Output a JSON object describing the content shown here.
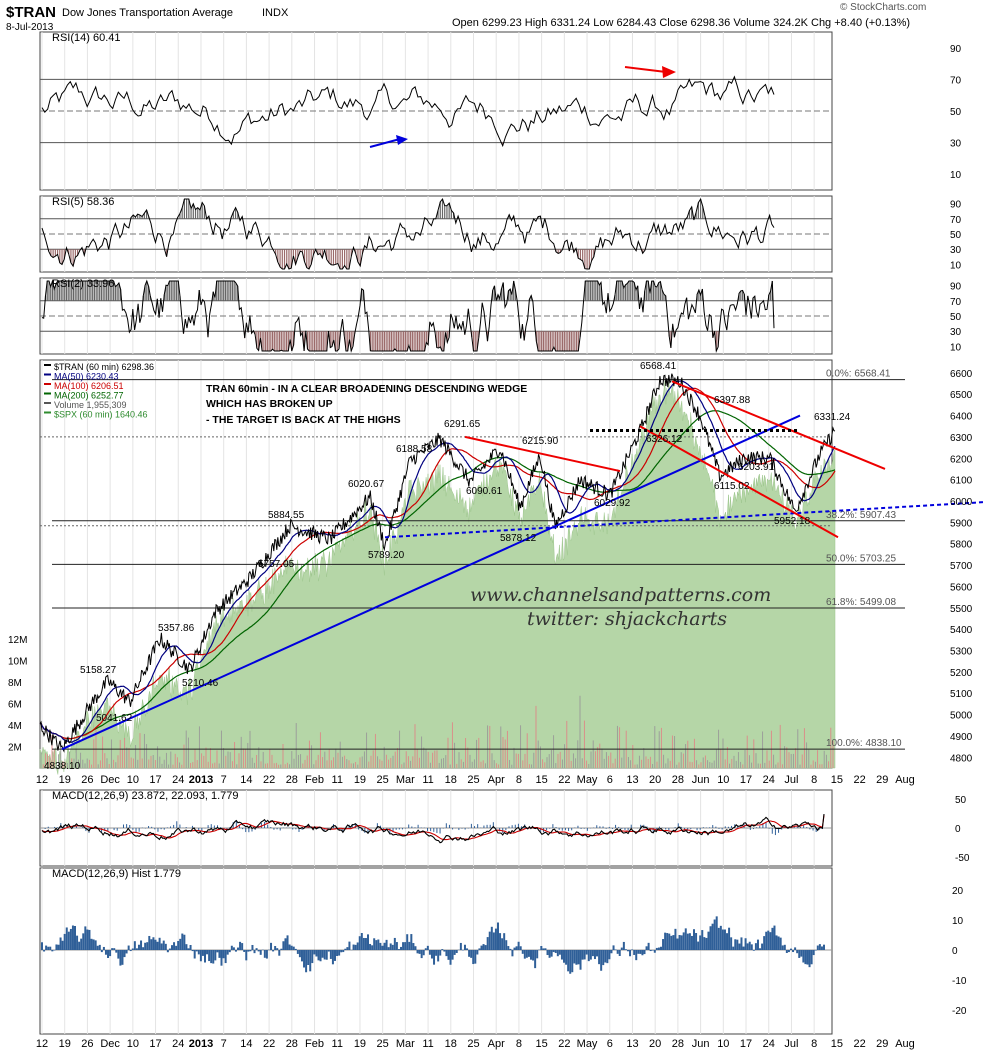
{
  "header": {
    "symbol": "$TRAN",
    "name": "Dow Jones Transportation Average",
    "exchange": "INDX",
    "date": "8-Jul-2013",
    "ohlc": "Open 6299.23  High 6331.24  Low 6284.43  Close 6298.36  Volume 324.2K  Chg +8.40 (+0.13%)",
    "change_arrow": "▲",
    "copyright": "© StockCharts.com"
  },
  "panels": {
    "rsi14_label": "RSI(14) 60.41",
    "rsi5_label": "RSI(5) 58.36",
    "rsi2_label": "RSI(2) 33.96",
    "macd_label": "MACD(12,26,9) 23.872, 22.093, 1.779",
    "macd_hist_label": "MACD(12,26,9) Hist 1.779"
  },
  "legend": [
    {
      "text": "$TRAN (60 min) 6298.36",
      "color": "#000000"
    },
    {
      "text": "MA(50) 6230.43",
      "color": "#000080"
    },
    {
      "text": "MA(100) 6206.51",
      "color": "#cc0000"
    },
    {
      "text": "MA(200) 6252.77",
      "color": "#006400"
    },
    {
      "text": "Volume 1,955,309",
      "color": "#555555"
    },
    {
      "text": "$SPX (60 min) 1640.46",
      "color": "#2e8b2e"
    }
  ],
  "annotation": {
    "line1": "TRAN 60min - IN A CLEAR BROADENING DESCENDING WEDGE",
    "line2": "WHICH HAS BROKEN UP",
    "line3": "- THE TARGET IS BACK AT THE HIGHS"
  },
  "watermark": {
    "line1": "www.channelsandpatterns.com",
    "line2": "twitter: shjackcharts"
  },
  "colors": {
    "price": "#000000",
    "ma50": "#000080",
    "ma100": "#cc0000",
    "ma200": "#006400",
    "spx_fill": "#b5d6a7",
    "trend_blue": "#0000dd",
    "trend_red": "#ee0000",
    "hist": "#2f5f98"
  },
  "chart_data": [
    {
      "type": "line",
      "title": "$TRAN Dow Jones Transportation Average INDX (60 min)",
      "x_ticks": [
        "12",
        "19",
        "26",
        "Dec",
        "10",
        "17",
        "24",
        "2013",
        "7",
        "14",
        "22",
        "28",
        "Feb",
        "11",
        "19",
        "25",
        "Mar",
        "11",
        "18",
        "25",
        "Apr",
        "8",
        "15",
        "22",
        "May",
        "6",
        "13",
        "20",
        "28",
        "Jun",
        "10",
        "17",
        "24",
        "Jul",
        "8",
        "15",
        "22",
        "29",
        "Aug"
      ],
      "y_ticks": [
        4800,
        4900,
        5000,
        5100,
        5200,
        5300,
        5400,
        5500,
        5600,
        5700,
        5800,
        5900,
        6000,
        6100,
        6200,
        6300,
        6400,
        6500,
        6600
      ],
      "ylim": [
        4750,
        6660
      ],
      "volume_ticks": [
        "2M",
        "4M",
        "6M",
        "8M",
        "10M",
        "12M"
      ],
      "price_points": [
        {
          "label": "4838.10",
          "value": 4838.1
        },
        {
          "label": "5041.62",
          "value": 5041.62
        },
        {
          "label": "5158.27",
          "value": 5158.27
        },
        {
          "label": "5210.46",
          "value": 5210.46
        },
        {
          "label": "5357.86",
          "value": 5357.86
        },
        {
          "label": "5757.05",
          "value": 5757.05
        },
        {
          "label": "5884.55",
          "value": 5884.55
        },
        {
          "label": "5789.20",
          "value": 5789.2
        },
        {
          "label": "6020.67",
          "value": 6020.67
        },
        {
          "label": "6188.58",
          "value": 6188.58
        },
        {
          "label": "6291.65",
          "value": 6291.65
        },
        {
          "label": "6090.61",
          "value": 6090.61
        },
        {
          "label": "6215.90",
          "value": 6215.9
        },
        {
          "label": "5878.12",
          "value": 5878.12
        },
        {
          "label": "6029.92",
          "value": 6029.92
        },
        {
          "label": "6326.12",
          "value": 6326.12
        },
        {
          "label": "6568.41",
          "value": 6568.41
        },
        {
          "label": "6397.88",
          "value": 6397.88
        },
        {
          "label": "6115.02",
          "value": 6115.02
        },
        {
          "label": "6203.91",
          "value": 6203.91
        },
        {
          "label": "5952.18",
          "value": 5952.18
        },
        {
          "label": "6331.24",
          "value": 6331.24
        }
      ],
      "fib_levels": [
        {
          "label": "0.0%: 6568.41",
          "value": 6568.41
        },
        {
          "label": "38.2%: 5907.43",
          "value": 5907.43
        },
        {
          "label": "50.0%: 5703.25",
          "value": 5703.25
        },
        {
          "label": "61.8%: 5499.08",
          "value": 5499.08
        },
        {
          "label": "100.0%: 4838.10",
          "value": 4838.1
        }
      ]
    },
    {
      "type": "line",
      "title": "RSI(14) 60.41",
      "y_ticks": [
        10,
        30,
        50,
        70,
        90
      ],
      "value": 60.41
    },
    {
      "type": "line",
      "title": "RSI(5) 58.36",
      "y_ticks": [
        10,
        30,
        50,
        70,
        90
      ],
      "value": 58.36
    },
    {
      "type": "line",
      "title": "RSI(2) 33.96",
      "y_ticks": [
        10,
        30,
        50,
        70,
        90
      ],
      "value": 33.96
    },
    {
      "type": "line",
      "title": "MACD(12,26,9) 23.872, 22.093, 1.779",
      "y_ticks": [
        -50,
        0,
        50
      ],
      "macd": 23.872,
      "signal": 22.093,
      "hist": 1.779
    },
    {
      "type": "bar",
      "title": "MACD(12,26,9) Hist 1.779",
      "y_ticks": [
        -20,
        -10,
        0,
        10,
        20
      ],
      "value": 1.779
    }
  ]
}
